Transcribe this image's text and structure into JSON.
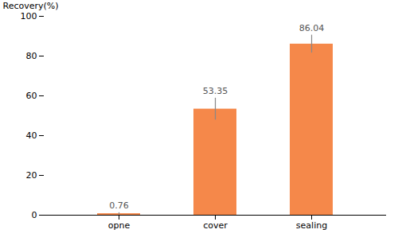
{
  "chart_data": {
    "type": "bar",
    "categories": [
      "opne",
      "cover",
      "sealing"
    ],
    "values": [
      0.76,
      53.35,
      86.04
    ],
    "errors": [
      0.5,
      5.5,
      4.5
    ],
    "color": "#F5884A",
    "ylabel": "Recovery(%)",
    "ylim": [
      0,
      100
    ],
    "yticks": [
      0,
      20,
      40,
      60,
      80,
      100
    ],
    "data_labels": true,
    "grid": false
  }
}
